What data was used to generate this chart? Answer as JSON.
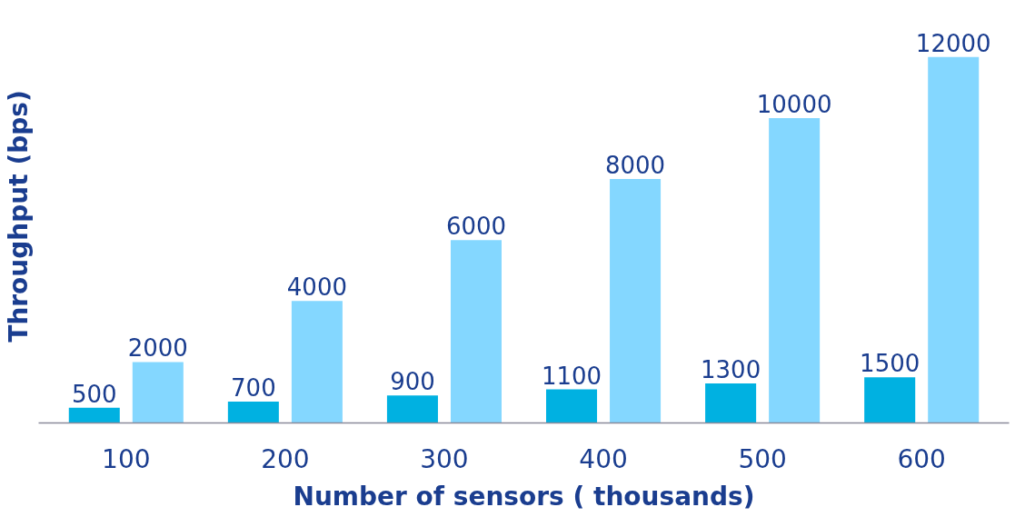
{
  "chart_data": {
    "type": "bar",
    "xlabel": "Number of sensors ( thousands)",
    "ylabel": "Throughput (bps)",
    "categories": [
      "100",
      "200",
      "300",
      "400",
      "500",
      "600"
    ],
    "series": [
      {
        "color": "#00b1e1",
        "values": [
          500,
          700,
          900,
          1100,
          1300,
          1500
        ]
      },
      {
        "color": "#84d7ff",
        "values": [
          2000,
          4000,
          6000,
          8000,
          10000,
          12000
        ]
      }
    ],
    "data_labels": true,
    "grid": false
  }
}
